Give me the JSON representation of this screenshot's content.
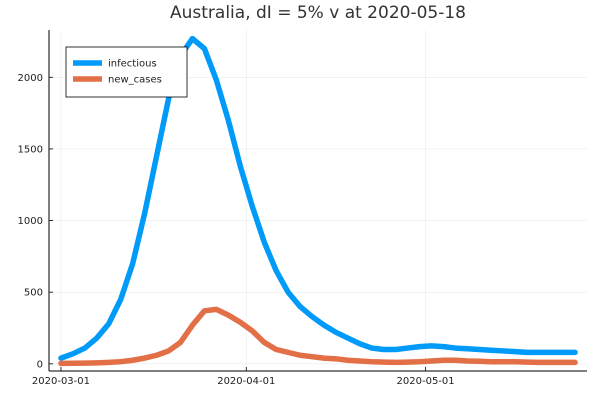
{
  "chart_data": {
    "type": "line",
    "title": "Australia,  dI = 5% v at 2020-05-18",
    "xlabel": "",
    "ylabel": "",
    "xlim": [
      "2020-02-28",
      "2020-05-28"
    ],
    "ylim": [
      -50,
      2330
    ],
    "xticks": [
      "2020-03-01",
      "2020-04-01",
      "2020-05-01"
    ],
    "yticks": [
      0,
      500,
      1000,
      1500,
      2000
    ],
    "grid": true,
    "legend_position": "top-left",
    "x": [
      "2020-03-01",
      "2020-03-03",
      "2020-03-05",
      "2020-03-07",
      "2020-03-09",
      "2020-03-11",
      "2020-03-13",
      "2020-03-15",
      "2020-03-17",
      "2020-03-19",
      "2020-03-21",
      "2020-03-23",
      "2020-03-25",
      "2020-03-27",
      "2020-03-29",
      "2020-03-31",
      "2020-04-02",
      "2020-04-04",
      "2020-04-06",
      "2020-04-08",
      "2020-04-10",
      "2020-04-12",
      "2020-04-14",
      "2020-04-16",
      "2020-04-18",
      "2020-04-20",
      "2020-04-22",
      "2020-04-24",
      "2020-04-26",
      "2020-04-28",
      "2020-04-30",
      "2020-05-02",
      "2020-05-04",
      "2020-05-06",
      "2020-05-08",
      "2020-05-10",
      "2020-05-12",
      "2020-05-14",
      "2020-05-16",
      "2020-05-18",
      "2020-05-20",
      "2020-05-22",
      "2020-05-24",
      "2020-05-26"
    ],
    "series": [
      {
        "name": "infectious",
        "color": "#009af9",
        "values": [
          40,
          70,
          110,
          180,
          280,
          450,
          700,
          1050,
          1450,
          1850,
          2150,
          2270,
          2200,
          1980,
          1700,
          1380,
          1100,
          850,
          650,
          500,
          400,
          330,
          270,
          220,
          180,
          140,
          110,
          100,
          100,
          110,
          120,
          125,
          120,
          110,
          105,
          100,
          95,
          90,
          85,
          80,
          80,
          80,
          80,
          80
        ]
      },
      {
        "name": "new_cases",
        "color": "#e26f46",
        "values": [
          3,
          4,
          5,
          7,
          10,
          15,
          25,
          40,
          60,
          90,
          150,
          270,
          370,
          380,
          340,
          290,
          230,
          150,
          100,
          80,
          60,
          50,
          40,
          35,
          25,
          20,
          15,
          12,
          10,
          12,
          15,
          20,
          25,
          25,
          20,
          18,
          15,
          15,
          15,
          12,
          10,
          10,
          10,
          10
        ]
      }
    ]
  }
}
